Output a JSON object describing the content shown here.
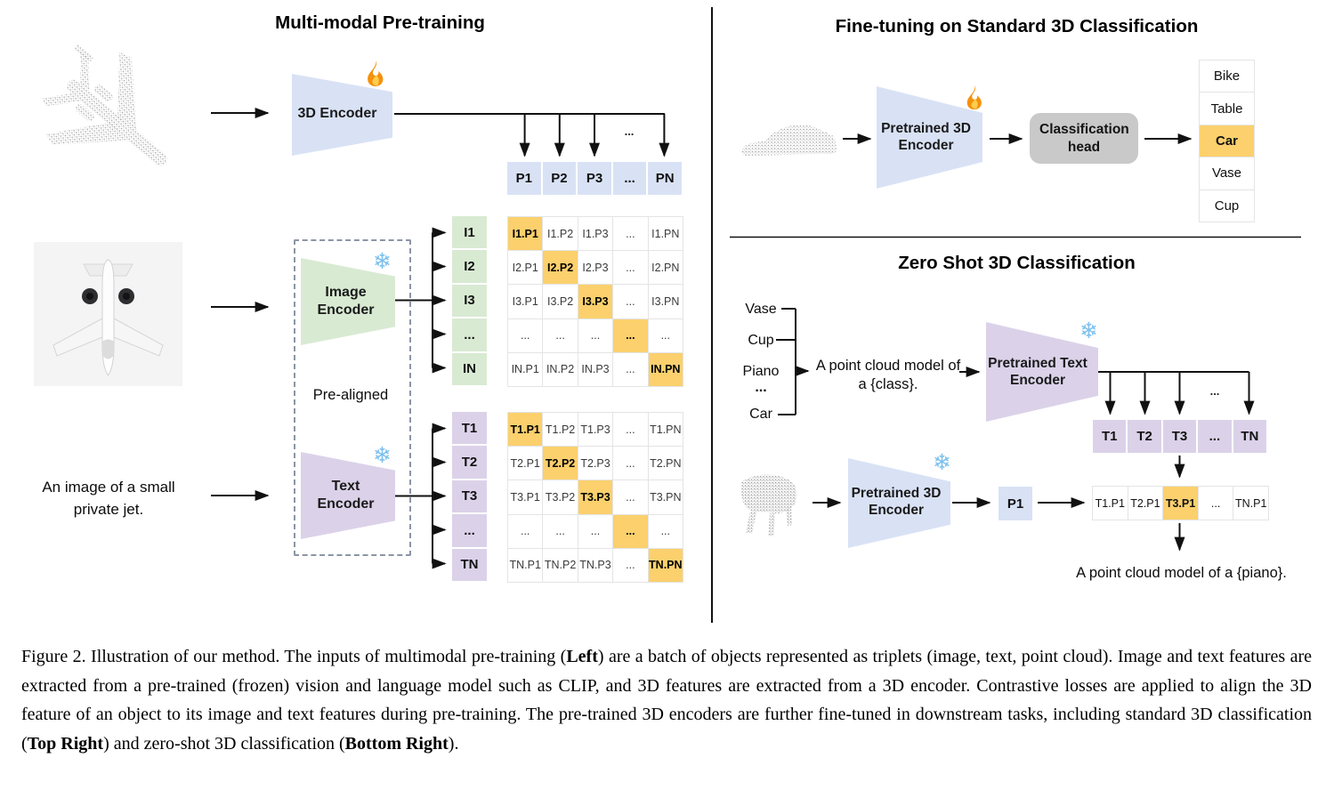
{
  "left_panel": {
    "title": "Multi-modal Pre-training",
    "encoder_3d_label": "3D Encoder",
    "image_encoder_label": "Image Encoder",
    "text_encoder_label": "Text Encoder",
    "prealigned_label": "Pre-aligned",
    "text_input_line1": "An image of a small",
    "text_input_line2": "private jet.",
    "ellipsis": "...",
    "p_row": [
      "P1",
      "P2",
      "P3",
      "...",
      "PN"
    ],
    "image_row_headers": [
      "I1",
      "I2",
      "I3",
      "...",
      "IN"
    ],
    "image_matrix": [
      [
        "I1.P1",
        "I1.P2",
        "I1.P3",
        "...",
        "I1.PN"
      ],
      [
        "I2.P1",
        "I2.P2",
        "I2.P3",
        "...",
        "I2.PN"
      ],
      [
        "I3.P1",
        "I3.P2",
        "I3.P3",
        "...",
        "I3.PN"
      ],
      [
        "...",
        "...",
        "...",
        "...",
        "..."
      ],
      [
        "IN.P1",
        "IN.P2",
        "IN.P3",
        "...",
        "IN.PN"
      ]
    ],
    "text_row_headers": [
      "T1",
      "T2",
      "T3",
      "...",
      "TN"
    ],
    "text_matrix": [
      [
        "T1.P1",
        "T1.P2",
        "T1.P3",
        "...",
        "T1.PN"
      ],
      [
        "T2.P1",
        "T2.P2",
        "T2.P3",
        "...",
        "T2.PN"
      ],
      [
        "T3.P1",
        "T3.P2",
        "T3.P3",
        "...",
        "T3.PN"
      ],
      [
        "...",
        "...",
        "...",
        "...",
        "..."
      ],
      [
        "TN.P1",
        "TN.P2",
        "TN.P3",
        "...",
        "TN.PN"
      ]
    ]
  },
  "top_right_panel": {
    "title": "Fine-tuning on Standard 3D Classification",
    "encoder_label": "Pretrained 3D Encoder",
    "head_label": "Classification head",
    "classes": [
      "Bike",
      "Table",
      "Car",
      "Vase",
      "Cup"
    ],
    "highlighted_class": "Car"
  },
  "bottom_right_panel": {
    "title": "Zero Shot 3D Classification",
    "class_prompts": [
      "Vase",
      "Cup",
      "Piano",
      "...",
      "Car"
    ],
    "prompt_line1": "A point cloud model of",
    "prompt_line2": "a {class}.",
    "text_encoder_label": "Pretrained Text Encoder",
    "encoder_3d_label": "Pretrained 3D Encoder",
    "t_row": [
      "T1",
      "T2",
      "T3",
      "...",
      "TN"
    ],
    "p_cell": "P1",
    "result_row": [
      "T1.P1",
      "T2.P1",
      "T3.P1",
      "...",
      "TN.P1"
    ],
    "result_highlight": "T3.P1",
    "ellipsis": "...",
    "output_prompt": "A point cloud model of a {piano}."
  },
  "caption": {
    "segments": [
      {
        "text": "Figure 2. Illustration of our method.  The inputs of multimodal pre-training (",
        "bold": false
      },
      {
        "text": "Left",
        "bold": true
      },
      {
        "text": ") are a batch of objects represented as triplets (image, text, point cloud).  Image and text features are extracted from a pre-trained (frozen) vision and language model such as CLIP, and 3D features are extracted from a 3D encoder.  Contrastive losses are applied to align the 3D feature of an object to its image and text features during pre-training.  The pre-trained 3D encoders are further fine-tuned in downstream tasks, including standard 3D classification (",
        "bold": false
      },
      {
        "text": "Top Right",
        "bold": true
      },
      {
        "text": ") and zero-shot 3D classification (",
        "bold": false
      },
      {
        "text": "Bottom Right",
        "bold": true
      },
      {
        "text": ").",
        "bold": false
      }
    ]
  },
  "colors": {
    "blue": "#d9e2f5",
    "green": "#d9ead3",
    "purple": "#dbd2e9",
    "highlight": "#fbd06d",
    "head_gray": "#c9c9c9"
  }
}
